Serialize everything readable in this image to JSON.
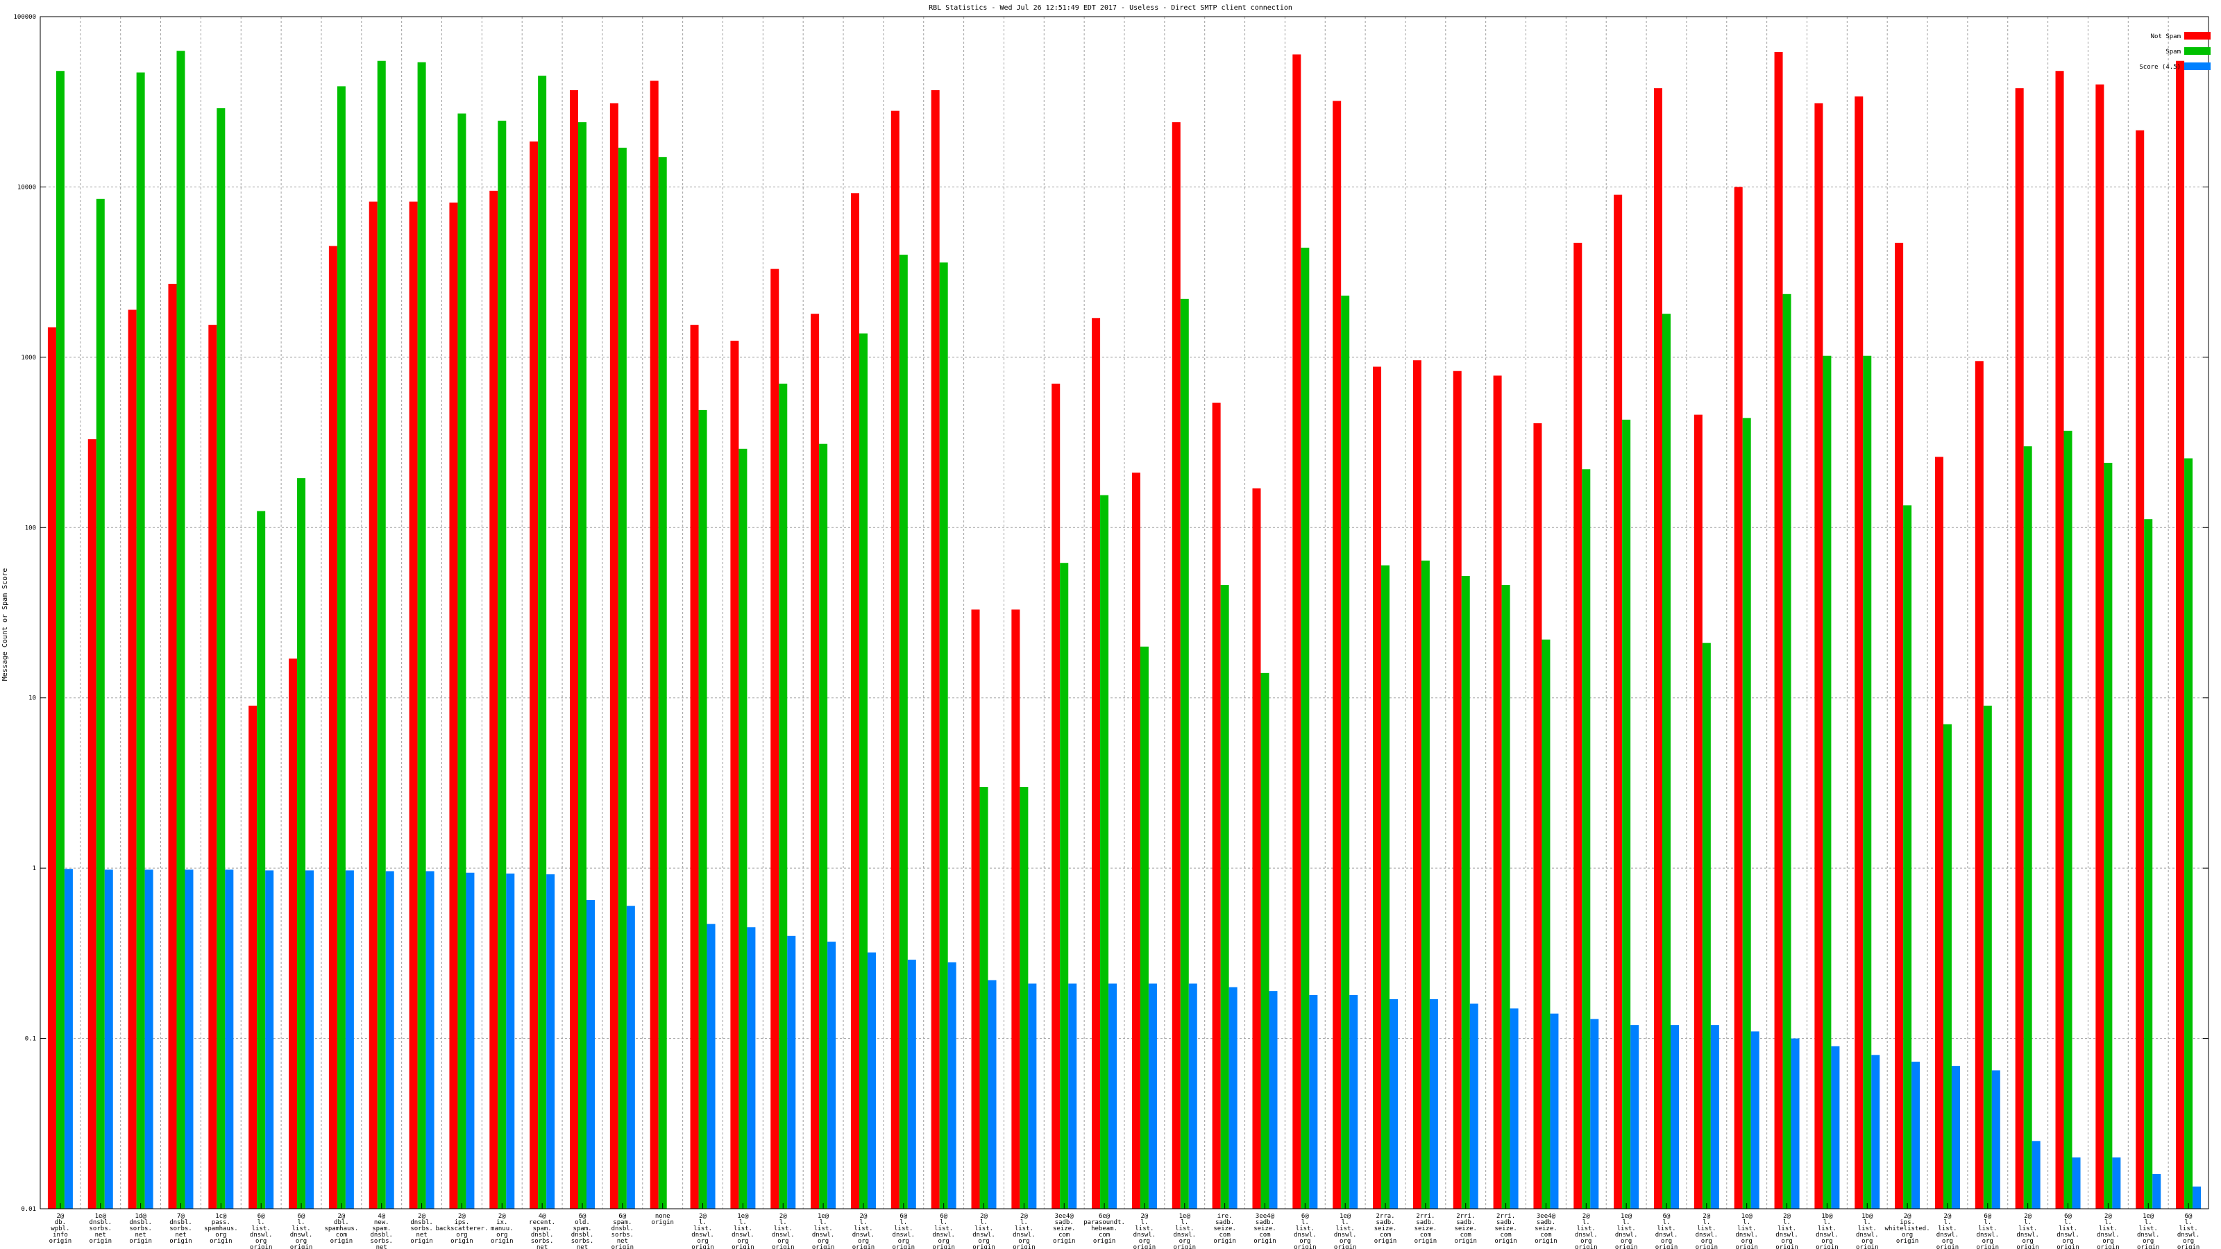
{
  "chart_data": {
    "type": "bar",
    "title": "RBL Statistics - Wed Jul 26 12:51:49 EDT 2017 - Useless - Direct SMTP client connection",
    "ylabel": "Message Count or Spam Score",
    "xlabel": "",
    "yscale": "log",
    "ylim": [
      0.01,
      100000
    ],
    "yticks": [
      "0.01",
      "0.1",
      "1",
      "10",
      "100",
      "1000",
      "10000",
      "100000"
    ],
    "grid": true,
    "legend_position": "top-right",
    "colors": {
      "not_spam": "#ff0000",
      "spam": "#00c000",
      "score": "#0080ff"
    },
    "series": [
      {
        "name": "Not Spam",
        "key": "not_spam"
      },
      {
        "name": "Spam",
        "key": "spam"
      },
      {
        "name": "Score (4.5)",
        "key": "score"
      }
    ],
    "bars": [
      {
        "label": [
          "2@",
          "db.",
          "wpbl.",
          "info",
          "origin"
        ],
        "not_spam": 1500,
        "spam": 48000,
        "score": 0.99
      },
      {
        "label": [
          "1e@",
          "dnsbl.",
          "sorbs.",
          "net",
          "origin"
        ],
        "not_spam": 330,
        "spam": 8500,
        "score": 0.98
      },
      {
        "label": [
          "1d@",
          "dnsbl.",
          "sorbs.",
          "net",
          "origin"
        ],
        "not_spam": 1900,
        "spam": 47000,
        "score": 0.98
      },
      {
        "label": [
          "7@",
          "dnsbl.",
          "sorbs.",
          "net",
          "origin"
        ],
        "not_spam": 2700,
        "spam": 63000,
        "score": 0.98
      },
      {
        "label": [
          "1c@",
          "pass.",
          "spamhaus.",
          "org",
          "origin"
        ],
        "not_spam": 1550,
        "spam": 29000,
        "score": 0.98
      },
      {
        "label": [
          "6@",
          "l.",
          "list.",
          "dnswl.",
          "org",
          "origin"
        ],
        "not_spam": 9,
        "spam": 125,
        "score": 0.97
      },
      {
        "label": [
          "6@",
          "l.",
          "list.",
          "dnswl.",
          "org",
          "origin"
        ],
        "not_spam": 17,
        "spam": 195,
        "score": 0.97
      },
      {
        "label": [
          "2@",
          "dbl.",
          "spamhaus.",
          "com",
          "origin"
        ],
        "not_spam": 4500,
        "spam": 39000,
        "score": 0.97
      },
      {
        "label": [
          "4@",
          "new.",
          "spam.",
          "dnsbl.",
          "sorbs.",
          "net",
          "origin"
        ],
        "not_spam": 8200,
        "spam": 55000,
        "score": 0.96
      },
      {
        "label": [
          "2@",
          "dnsbl.",
          "sorbs.",
          "net",
          "origin"
        ],
        "not_spam": 8200,
        "spam": 54000,
        "score": 0.96
      },
      {
        "label": [
          "2@",
          "ips.",
          "backscatterer.",
          "org",
          "origin"
        ],
        "not_spam": 8100,
        "spam": 27000,
        "score": 0.94
      },
      {
        "label": [
          "2@",
          "ix.",
          "manuu.",
          "org",
          "origin"
        ],
        "not_spam": 9500,
        "spam": 24500,
        "score": 0.93
      },
      {
        "label": [
          "4@",
          "recent.",
          "spam.",
          "dnsbl.",
          "sorbs.",
          "net",
          "origin"
        ],
        "not_spam": 18500,
        "spam": 45000,
        "score": 0.92
      },
      {
        "label": [
          "6@",
          "old.",
          "spam.",
          "dnsbl.",
          "sorbs.",
          "net",
          "origin"
        ],
        "not_spam": 37000,
        "spam": 24000,
        "score": 0.65
      },
      {
        "label": [
          "6@",
          "spam.",
          "dnsbl.",
          "sorbs.",
          "net",
          "origin"
        ],
        "not_spam": 31000,
        "spam": 17000,
        "score": 0.6
      },
      {
        "label": [
          "none",
          "origin"
        ],
        "not_spam": 42000,
        "spam": 15000,
        "score": null
      },
      {
        "label": [
          "2@",
          "l.",
          "list.",
          "dnswl.",
          "org",
          "origin"
        ],
        "not_spam": 1550,
        "spam": 490,
        "score": 0.47
      },
      {
        "label": [
          "1e@",
          "l.",
          "list.",
          "dnswl.",
          "org",
          "origin"
        ],
        "not_spam": 1250,
        "spam": 290,
        "score": 0.45
      },
      {
        "label": [
          "2@",
          "l.",
          "list.",
          "dnswl.",
          "org",
          "origin"
        ],
        "not_spam": 3300,
        "spam": 700,
        "score": 0.4
      },
      {
        "label": [
          "1e@",
          "l.",
          "list.",
          "dnswl.",
          "org",
          "origin"
        ],
        "not_spam": 1800,
        "spam": 310,
        "score": 0.37
      },
      {
        "label": [
          "2@",
          "l.",
          "list.",
          "dnswl.",
          "org",
          "origin"
        ],
        "not_spam": 9200,
        "spam": 1380,
        "score": 0.32
      },
      {
        "label": [
          "6@",
          "l.",
          "list.",
          "dnswl.",
          "org",
          "origin"
        ],
        "not_spam": 28000,
        "spam": 4000,
        "score": 0.29
      },
      {
        "label": [
          "6@",
          "l.",
          "list.",
          "dnswl.",
          "org",
          "origin"
        ],
        "not_spam": 37000,
        "spam": 3600,
        "score": 0.28
      },
      {
        "label": [
          "2@",
          "l.",
          "list.",
          "dnswl.",
          "org",
          "origin"
        ],
        "not_spam": 33,
        "spam": 3,
        "score": 0.22
      },
      {
        "label": [
          "2@",
          "l.",
          "list.",
          "dnswl.",
          "org",
          "origin"
        ],
        "not_spam": 33,
        "spam": 3,
        "score": 0.21
      },
      {
        "label": [
          "3ee4@",
          "sadb.",
          "seize.",
          "com",
          "origin"
        ],
        "not_spam": 700,
        "spam": 62,
        "score": 0.21
      },
      {
        "label": [
          "6e@",
          "parasoundt.",
          "hebeam.",
          "com",
          "origin"
        ],
        "not_spam": 1700,
        "spam": 155,
        "score": 0.21
      },
      {
        "label": [
          "2@",
          "l.",
          "list.",
          "dnswl.",
          "org",
          "origin"
        ],
        "not_spam": 210,
        "spam": 20,
        "score": 0.21
      },
      {
        "label": [
          "1e@",
          "l.",
          "list.",
          "dnswl.",
          "org",
          "origin"
        ],
        "not_spam": 24000,
        "spam": 2200,
        "score": 0.21
      },
      {
        "label": [
          "ire.",
          "sadb.",
          "seize.",
          "com",
          "origin"
        ],
        "not_spam": 540,
        "spam": 46,
        "score": 0.2
      },
      {
        "label": [
          "3ee4@",
          "sadb.",
          "seize.",
          "com",
          "origin"
        ],
        "not_spam": 170,
        "spam": 14,
        "score": 0.19
      },
      {
        "label": [
          "6@",
          "l.",
          "list.",
          "dnswl.",
          "org",
          "origin"
        ],
        "not_spam": 60000,
        "spam": 4400,
        "score": 0.18
      },
      {
        "label": [
          "1e@",
          "l.",
          "list.",
          "dnswl.",
          "org",
          "origin"
        ],
        "not_spam": 32000,
        "spam": 2300,
        "score": 0.18
      },
      {
        "label": [
          "2rra.",
          "sadb.",
          "seize.",
          "com",
          "origin"
        ],
        "not_spam": 880,
        "spam": 60,
        "score": 0.17
      },
      {
        "label": [
          "2rri.",
          "sadb.",
          "seize.",
          "com",
          "origin"
        ],
        "not_spam": 960,
        "spam": 64,
        "score": 0.17
      },
      {
        "label": [
          "2rri.",
          "sadb.",
          "seize.",
          "com",
          "origin"
        ],
        "not_spam": 830,
        "spam": 52,
        "score": 0.16
      },
      {
        "label": [
          "2rri.",
          "sadb.",
          "seize.",
          "com",
          "origin"
        ],
        "not_spam": 780,
        "spam": 46,
        "score": 0.15
      },
      {
        "label": [
          "3ee4@",
          "sadb.",
          "seize.",
          "com",
          "origin"
        ],
        "not_spam": 410,
        "spam": 22,
        "score": 0.14
      },
      {
        "label": [
          "2@",
          "l.",
          "list.",
          "dnswl.",
          "org",
          "origin"
        ],
        "not_spam": 4700,
        "spam": 220,
        "score": 0.13
      },
      {
        "label": [
          "1e@",
          "l.",
          "list.",
          "dnswl.",
          "org",
          "origin"
        ],
        "not_spam": 9000,
        "spam": 430,
        "score": 0.12
      },
      {
        "label": [
          "6@",
          "l.",
          "list.",
          "dnswl.",
          "org",
          "origin"
        ],
        "not_spam": 38000,
        "spam": 1800,
        "score": 0.12
      },
      {
        "label": [
          "2@",
          "l.",
          "list.",
          "dnswl.",
          "org",
          "origin"
        ],
        "not_spam": 460,
        "spam": 21,
        "score": 0.12
      },
      {
        "label": [
          "1e@",
          "l.",
          "list.",
          "dnswl.",
          "org",
          "origin"
        ],
        "not_spam": 10000,
        "spam": 440,
        "score": 0.11
      },
      {
        "label": [
          "2@",
          "l.",
          "list.",
          "dnswl.",
          "org",
          "origin"
        ],
        "not_spam": 62000,
        "spam": 2350,
        "score": 0.1
      },
      {
        "label": [
          "1b@",
          "l.",
          "list.",
          "dnswl.",
          "org",
          "origin"
        ],
        "not_spam": 31000,
        "spam": 1020,
        "score": 0.09
      },
      {
        "label": [
          "1b@",
          "l.",
          "list.",
          "dnswl.",
          "org",
          "origin"
        ],
        "not_spam": 34000,
        "spam": 1020,
        "score": 0.08
      },
      {
        "label": [
          "2@",
          "ips.",
          "whitelisted.",
          "org",
          "origin"
        ],
        "not_spam": 4700,
        "spam": 135,
        "score": 0.073
      },
      {
        "label": [
          "2@",
          "l.",
          "list.",
          "dnswl.",
          "org",
          "origin"
        ],
        "not_spam": 260,
        "spam": 7,
        "score": 0.069
      },
      {
        "label": [
          "6@",
          "l.",
          "list.",
          "dnswl.",
          "org",
          "origin"
        ],
        "not_spam": 950,
        "spam": 9,
        "score": 0.065
      },
      {
        "label": [
          "2@",
          "l.",
          "list.",
          "dnswl.",
          "org",
          "origin"
        ],
        "not_spam": 38000,
        "spam": 300,
        "score": 0.025
      },
      {
        "label": [
          "6@",
          "l.",
          "list.",
          "dnswl.",
          "org",
          "origin"
        ],
        "not_spam": 48000,
        "spam": 370,
        "score": 0.02
      },
      {
        "label": [
          "2@",
          "l.",
          "list.",
          "dnswl.",
          "org",
          "origin"
        ],
        "not_spam": 40000,
        "spam": 240,
        "score": 0.02
      },
      {
        "label": [
          "1e@",
          "l.",
          "list.",
          "dnswl.",
          "org",
          "origin"
        ],
        "not_spam": 21500,
        "spam": 112,
        "score": 0.016
      },
      {
        "label": [
          "6@",
          "l.",
          "list.",
          "dnswl.",
          "org",
          "origin"
        ],
        "not_spam": 55000,
        "spam": 255,
        "score": 0.0135
      }
    ]
  }
}
